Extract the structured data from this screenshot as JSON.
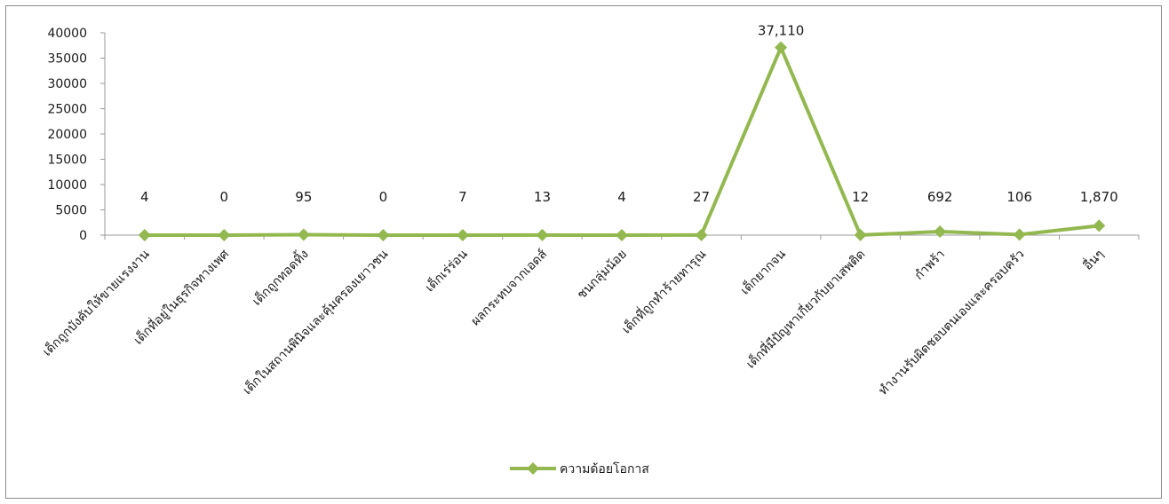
{
  "chart_data": {
    "type": "line",
    "title": "",
    "xlabel": "",
    "ylabel": "",
    "ylim": [
      0,
      40000
    ],
    "yticks": [
      0,
      5000,
      10000,
      15000,
      20000,
      25000,
      30000,
      35000,
      40000
    ],
    "grid": false,
    "legend_position": "bottom",
    "categories": [
      "เด็กถูกบังคับให้ขายแรงงาน",
      "เด็กที่อยู่ในธุรกิจทางเพศ",
      "เด็กถูกทอดทิ้ง",
      "เด็กในสถานพินิจและคุ้มครองเยาวชน",
      "เด็กเร่ร่อน",
      "ผลกระทบจากเอดส์",
      "ชนกลุ่มน้อย",
      "เด็กที่ถูกทำร้ายทารุณ",
      "เด็กยากจน",
      "เด็กที่มีปัญหาเกี่ยวกับยาเสพติด",
      "กำพร้า",
      "ทำงานรับผิดชอบตนเองและครอบครัว",
      "อื่นๆ"
    ],
    "series": [
      {
        "name": "ความด้อยโอกาส",
        "color": "#92b84f",
        "values": [
          4,
          0,
          95,
          0,
          7,
          13,
          4,
          27,
          37110,
          12,
          692,
          106,
          1870
        ],
        "data_labels": [
          "4",
          "0",
          "95",
          "0",
          "7",
          "13",
          "4",
          "27",
          "37,110",
          "12",
          "692",
          "106",
          "1,870"
        ]
      }
    ]
  }
}
